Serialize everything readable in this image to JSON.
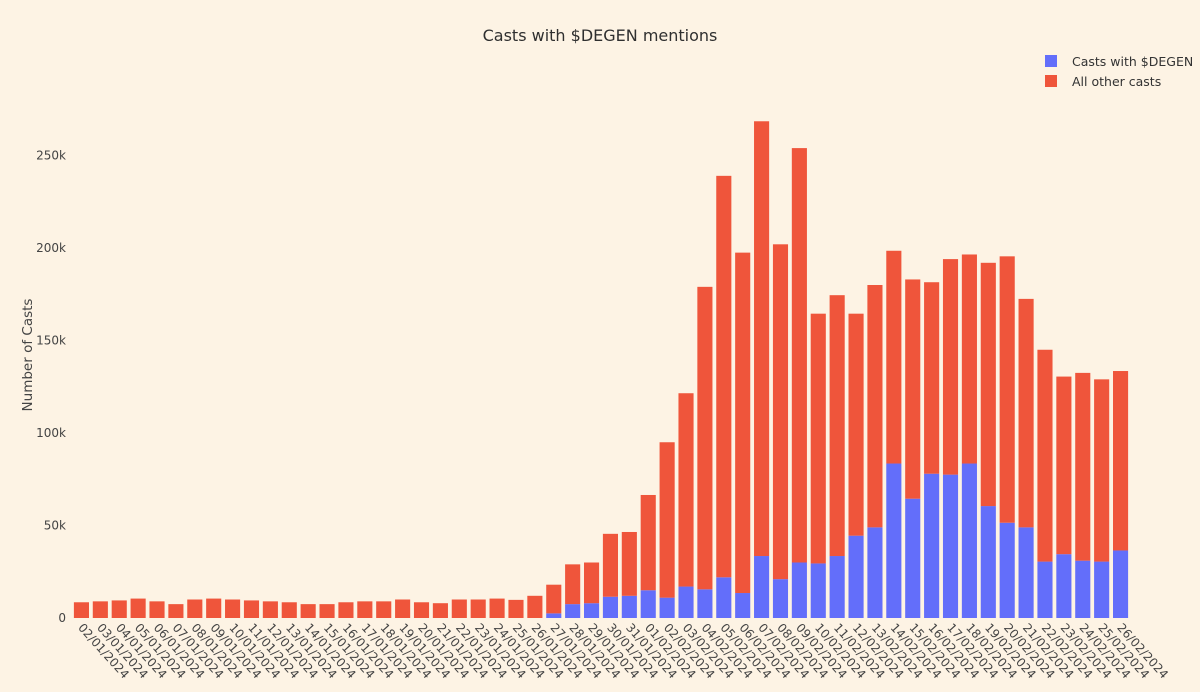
{
  "chart_data": {
    "type": "bar",
    "stacked": true,
    "title": "Casts with $DEGEN mentions",
    "xlabel": "",
    "ylabel": "Number of Casts",
    "ylim": [
      0,
      280000
    ],
    "yticks": [
      0,
      50000,
      100000,
      150000,
      200000,
      250000
    ],
    "ytick_labels": [
      "0",
      "50k",
      "100k",
      "150k",
      "200k",
      "250k"
    ],
    "legend_position": "top-right",
    "categories": [
      "02/01/2024",
      "03/01/2024",
      "04/01/2024",
      "05/01/2024",
      "06/01/2024",
      "07/01/2024",
      "08/01/2024",
      "09/01/2024",
      "10/01/2024",
      "11/01/2024",
      "12/01/2024",
      "13/01/2024",
      "14/01/2024",
      "15/01/2024",
      "16/01/2024",
      "17/01/2024",
      "18/01/2024",
      "19/01/2024",
      "20/01/2024",
      "21/01/2024",
      "22/01/2024",
      "23/01/2024",
      "24/01/2024",
      "25/01/2024",
      "26/01/2024",
      "27/01/2024",
      "28/01/2024",
      "29/01/2024",
      "30/01/2024",
      "31/01/2024",
      "01/02/2024",
      "02/02/2024",
      "03/02/2024",
      "04/02/2024",
      "05/02/2024",
      "06/02/2024",
      "07/02/2024",
      "08/02/2024",
      "09/02/2024",
      "10/02/2024",
      "11/02/2024",
      "12/02/2024",
      "13/02/2024",
      "14/02/2024",
      "15/02/2024",
      "16/02/2024",
      "17/02/2024",
      "18/02/2024",
      "19/02/2024",
      "20/02/2024",
      "21/02/2024",
      "22/02/2024",
      "23/02/2024",
      "24/02/2024",
      "25/02/2024",
      "26/02/2024"
    ],
    "series": [
      {
        "name": "Casts with $DEGEN",
        "color": "#636efa",
        "values": [
          0,
          0,
          0,
          0,
          0,
          0,
          0,
          0,
          0,
          0,
          0,
          0,
          0,
          0,
          0,
          0,
          0,
          0,
          0,
          0,
          0,
          0,
          0,
          0,
          0,
          2500,
          7500,
          8000,
          11500,
          12000,
          15000,
          11000,
          17000,
          15500,
          22000,
          13500,
          33500,
          21000,
          30000,
          29500,
          33500,
          44500,
          49000,
          83500,
          64500,
          78000,
          77500,
          83500,
          60500,
          51500,
          49000,
          30500,
          34500,
          31000,
          30500,
          36500
        ]
      },
      {
        "name": "All other casts",
        "color": "#ef553b",
        "values": [
          8500,
          9000,
          9500,
          10500,
          9000,
          7500,
          10000,
          10500,
          10000,
          9500,
          9000,
          8500,
          7500,
          7500,
          8500,
          9000,
          9000,
          10000,
          8500,
          8000,
          10000,
          10000,
          10500,
          9800,
          12000,
          15500,
          21500,
          22000,
          34000,
          34500,
          51500,
          84000,
          104500,
          163500,
          217000,
          184000,
          235000,
          181000,
          224000,
          135000,
          141000,
          120000,
          131000,
          115000,
          118500,
          103500,
          116500,
          113000,
          131500,
          144000,
          123500,
          114500,
          96000,
          101500,
          98500,
          97000
        ]
      }
    ]
  }
}
